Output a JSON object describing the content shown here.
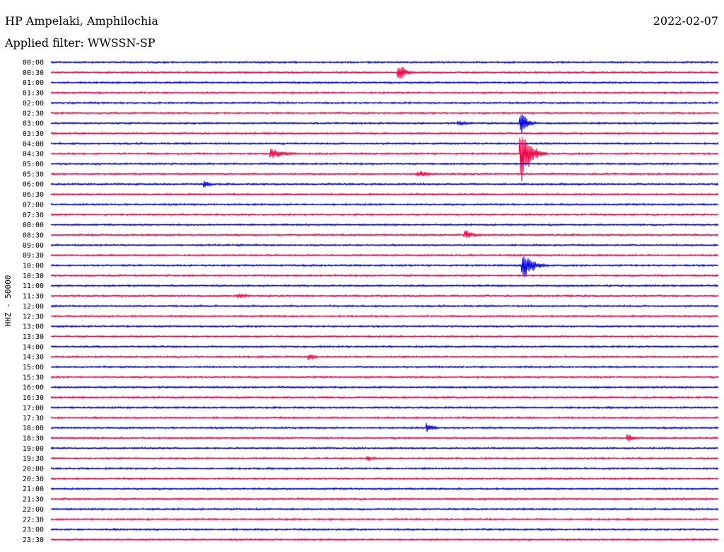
{
  "header": {
    "station": "HP Ampelaki, Amphilochia",
    "filter_prefix": "Applied filter:",
    "filter_name": "WWSSN-SP",
    "date": "2022-02-07"
  },
  "colors": {
    "blue": "#0000dd",
    "red": "#ee0044"
  },
  "chart_data": {
    "type": "helicorder",
    "title": "HP Ampelaki, Amphilochia",
    "ylabel": "HHZ - 50000",
    "date": "2022-02-07",
    "filter": "WWSSN-SP",
    "row_labels": [
      "00:00",
      "00:30",
      "01:00",
      "01:30",
      "02:00",
      "02:30",
      "03:00",
      "03:30",
      "04:00",
      "04:30",
      "05:00",
      "05:30",
      "06:00",
      "06:30",
      "07:00",
      "07:30",
      "08:00",
      "08:30",
      "09:00",
      "09:30",
      "10:00",
      "10:30",
      "11:00",
      "11:30",
      "12:00",
      "12:30",
      "13:00",
      "13:30",
      "14:00",
      "14:30",
      "15:00",
      "15:30",
      "16:00",
      "16:30",
      "17:00",
      "17:30",
      "18:00",
      "18:30",
      "19:00",
      "19:30",
      "20:00",
      "20:30",
      "21:00",
      "21:30",
      "22:00",
      "22:30",
      "23:00",
      "23:30"
    ],
    "row_colors": [
      "blue",
      "red"
    ],
    "minutes_per_row": 30,
    "events": [
      {
        "row": 1,
        "minute": 15.6,
        "amp": 14,
        "dur": 0.9
      },
      {
        "row": 9,
        "minute": 9.9,
        "amp": 8,
        "dur": 1.8
      },
      {
        "row": 9,
        "minute": 21.1,
        "amp": 42,
        "dur": 1.2
      },
      {
        "row": 6,
        "minute": 21.1,
        "amp": 18,
        "dur": 0.8
      },
      {
        "row": 12,
        "minute": 6.9,
        "amp": 6,
        "dur": 0.6
      },
      {
        "row": 11,
        "minute": 16.5,
        "amp": 5,
        "dur": 1.8
      },
      {
        "row": 17,
        "minute": 18.6,
        "amp": 7,
        "dur": 1.2
      },
      {
        "row": 20,
        "minute": 21.2,
        "amp": 22,
        "dur": 1.2
      },
      {
        "row": 29,
        "minute": 11.6,
        "amp": 6,
        "dur": 0.8
      },
      {
        "row": 36,
        "minute": 16.9,
        "amp": 8,
        "dur": 0.8
      },
      {
        "row": 37,
        "minute": 25.9,
        "amp": 6,
        "dur": 0.8
      },
      {
        "row": 39,
        "minute": 14.2,
        "amp": 4,
        "dur": 1.0
      },
      {
        "row": 23,
        "minute": 8.4,
        "amp": 4,
        "dur": 1.4
      },
      {
        "row": 6,
        "minute": 18.3,
        "amp": 4,
        "dur": 1.4
      }
    ]
  }
}
